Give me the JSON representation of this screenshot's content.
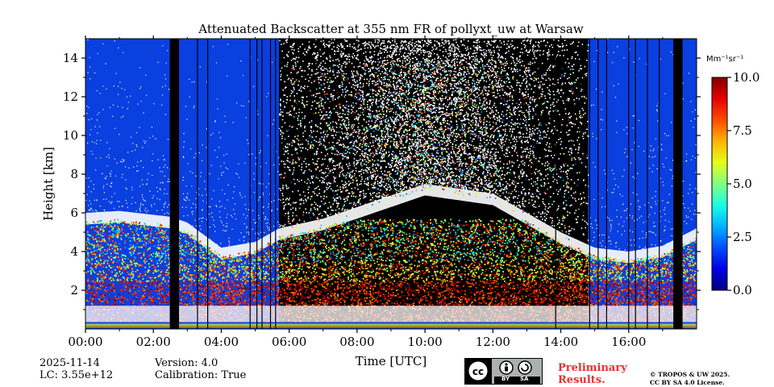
{
  "chart_data": {
    "type": "heatmap",
    "title": "Attenuated Backscatter at 355 nm FR of pollyxt_uw at Warsaw",
    "xlabel": "Time [UTC]",
    "ylabel": "Height [km]",
    "xlim": [
      0,
      18
    ],
    "ylim": [
      0,
      15
    ],
    "x_tick_labels": [
      "00:00",
      "02:00",
      "04:00",
      "06:00",
      "08:00",
      "10:00",
      "12:00",
      "14:00",
      "16:00"
    ],
    "x_tick_values": [
      0,
      2,
      4,
      6,
      8,
      10,
      12,
      14,
      16
    ],
    "y_tick_labels": [
      "2",
      "4",
      "6",
      "8",
      "10",
      "12",
      "14"
    ],
    "y_tick_values": [
      2,
      4,
      6,
      8,
      10,
      12,
      14
    ],
    "colorbar": {
      "unit_label": "Mm⁻¹sr⁻¹",
      "range": [
        0,
        10
      ],
      "tick_labels": [
        "0.0",
        "2.5",
        "5.0",
        "7.5",
        "10.0"
      ],
      "tick_values": [
        0,
        2.5,
        5,
        7.5,
        10
      ],
      "colormap": "jet",
      "no_signal_color": "#0a3fe0"
    },
    "night_regions_hours": [
      [
        0,
        2.5
      ],
      [
        2.8,
        5.7
      ],
      [
        14.8,
        18
      ]
    ],
    "daytime_noise_region_hours": [
      5.7,
      14.8
    ],
    "gap_lines_hours": [
      2.52,
      2.56,
      2.6,
      2.64,
      2.68,
      2.72,
      3.3,
      3.6,
      4.85,
      5.05,
      5.2,
      5.45,
      5.6,
      13.85,
      14.85,
      15.1,
      15.35,
      16.0,
      16.2,
      16.55,
      16.9,
      17.35,
      17.4,
      17.45,
      17.5,
      17.55
    ],
    "cloud_top_km": [
      [
        0.0,
        6.0
      ],
      [
        1.0,
        6.1
      ],
      [
        2.0,
        5.9
      ],
      [
        2.5,
        5.8
      ],
      [
        3.0,
        5.5
      ],
      [
        4.0,
        4.2
      ],
      [
        5.0,
        4.5
      ],
      [
        5.7,
        5.2
      ],
      [
        7.0,
        5.7
      ],
      [
        8.0,
        6.3
      ],
      [
        10.0,
        7.5
      ],
      [
        12.0,
        7.0
      ],
      [
        13.0,
        6.0
      ],
      [
        14.0,
        5.0
      ],
      [
        15.0,
        4.2
      ],
      [
        16.0,
        4.0
      ],
      [
        17.0,
        4.3
      ],
      [
        18.0,
        5.2
      ]
    ],
    "aerosol_layer_top_km": 3.5,
    "ground_noise_band_km": [
      0.0,
      0.35
    ]
  },
  "footer": {
    "date": "2025-11-14",
    "lc": "LC: 3.55e+12",
    "version": "Version: 4.0",
    "calibration": "Calibration: True",
    "preliminary_line1": "Preliminary",
    "preliminary_line2": "Results.",
    "copyright_line1": "© TROPOS & UW 2025.",
    "copyright_line2": "CC BY SA 4.0 License.",
    "cc_by": "BY",
    "cc_sa": "SA"
  }
}
